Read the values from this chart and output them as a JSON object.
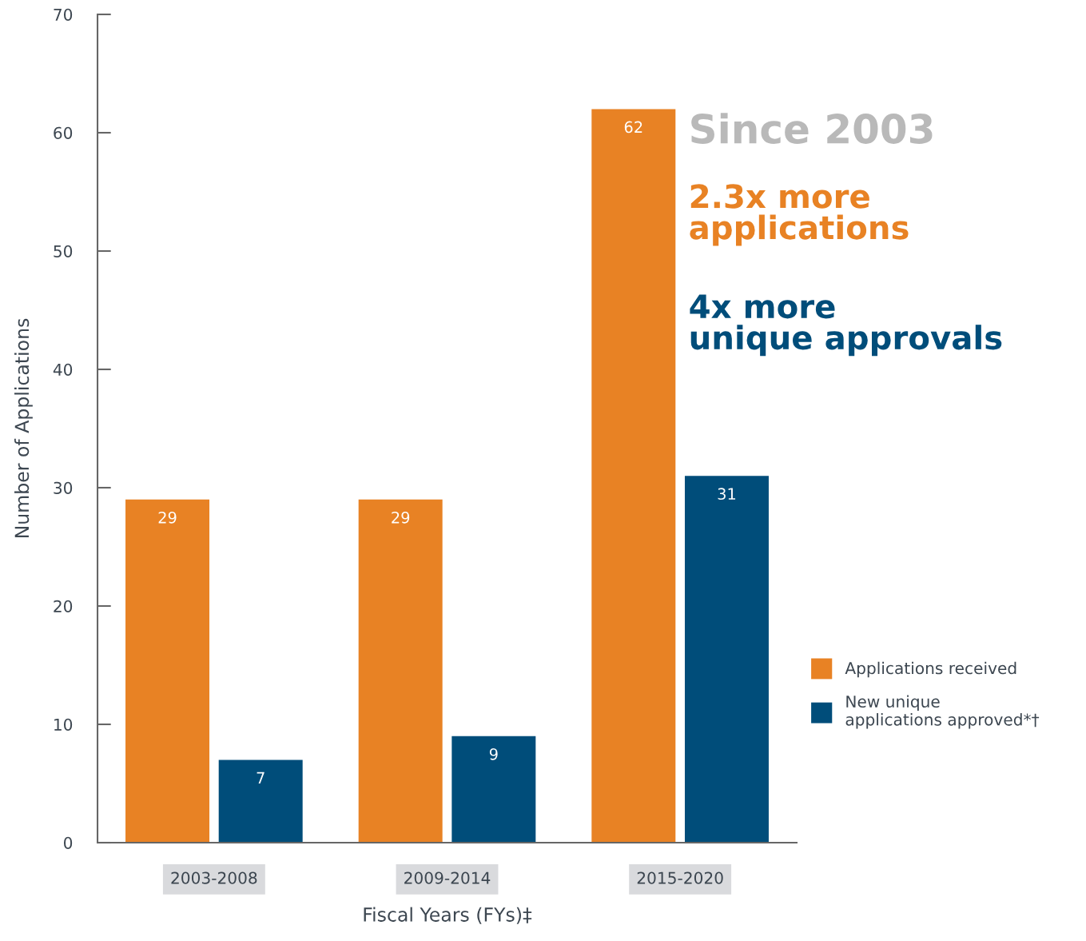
{
  "chart_data": {
    "type": "bar",
    "ylabel": "Number of Applications",
    "xlabel": "Fiscal Years (FYs)‡",
    "categories": [
      "2003-2008",
      "2009-2014",
      "2015-2020"
    ],
    "series": [
      {
        "name": "Applications received",
        "color": "#e88224",
        "values": [
          29,
          29,
          62
        ]
      },
      {
        "name": "New unique applications approved*†",
        "color": "#004d7a",
        "values": [
          7,
          9,
          31
        ]
      }
    ],
    "ylim": [
      0,
      70
    ],
    "yticks": [
      0,
      10,
      20,
      30,
      40,
      50,
      60,
      70
    ],
    "data_labels": true,
    "grid": false,
    "legend": "right",
    "annotations": [
      "Since 2003",
      "2.3x more applications",
      "4x more unique approvals"
    ]
  }
}
